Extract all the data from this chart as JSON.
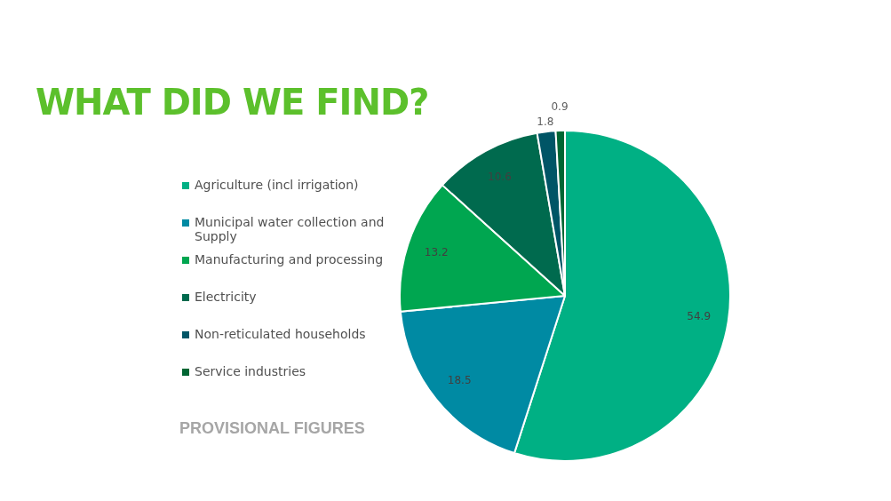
{
  "chart_data": {
    "type": "pie",
    "title": "WHAT DID WE FIND?",
    "categories": [
      "Agriculture (incl irrigation)",
      "Municipal water collection and Supply",
      "Manufacturing and processing",
      "Electricity",
      "Non-reticulated households",
      "Service industries"
    ],
    "values": [
      54.9,
      18.5,
      13.2,
      10.6,
      1.8,
      0.9
    ],
    "colors": [
      "#00b084",
      "#008aa3",
      "#00a650",
      "#006a4e",
      "#005566",
      "#006633"
    ],
    "data_labels": true,
    "legend": "left",
    "annotations": [
      "PROVISIONAL FIGURES"
    ]
  }
}
